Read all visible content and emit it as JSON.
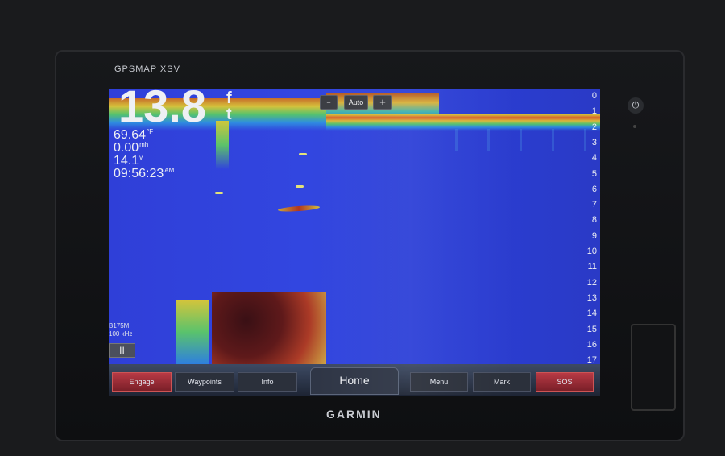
{
  "device": {
    "model_label": "GPSMAP XSV",
    "brand": "GARMIN",
    "power_icon": "power-icon"
  },
  "sonar": {
    "depth_value": "13.8",
    "depth_unit": "ft",
    "water_temp": "69.64",
    "water_temp_unit": "°F",
    "speed": "0.00",
    "speed_unit": "mh",
    "voltage": "14.1",
    "voltage_unit": "v",
    "time": "09:56:23",
    "time_unit": "AM",
    "zoom_minus": "−",
    "zoom_auto": "Auto",
    "zoom_plus": "+",
    "transducer": "B175M",
    "frequency": "100 kHz",
    "pause_label": "II",
    "depth_scale": [
      "0",
      "1",
      "2",
      "3",
      "4",
      "5",
      "6",
      "7",
      "8",
      "9",
      "10",
      "11",
      "12",
      "13",
      "14",
      "15",
      "16",
      "17"
    ],
    "colors": {
      "water": "#3246e0",
      "strong_return": "#611710",
      "surface": "#d7c23b"
    }
  },
  "bottom_bar": {
    "engage": "Engage",
    "waypoints": "Waypoints",
    "info": "Info",
    "home": "Home",
    "menu": "Menu",
    "mark": "Mark",
    "sos": "SOS"
  }
}
